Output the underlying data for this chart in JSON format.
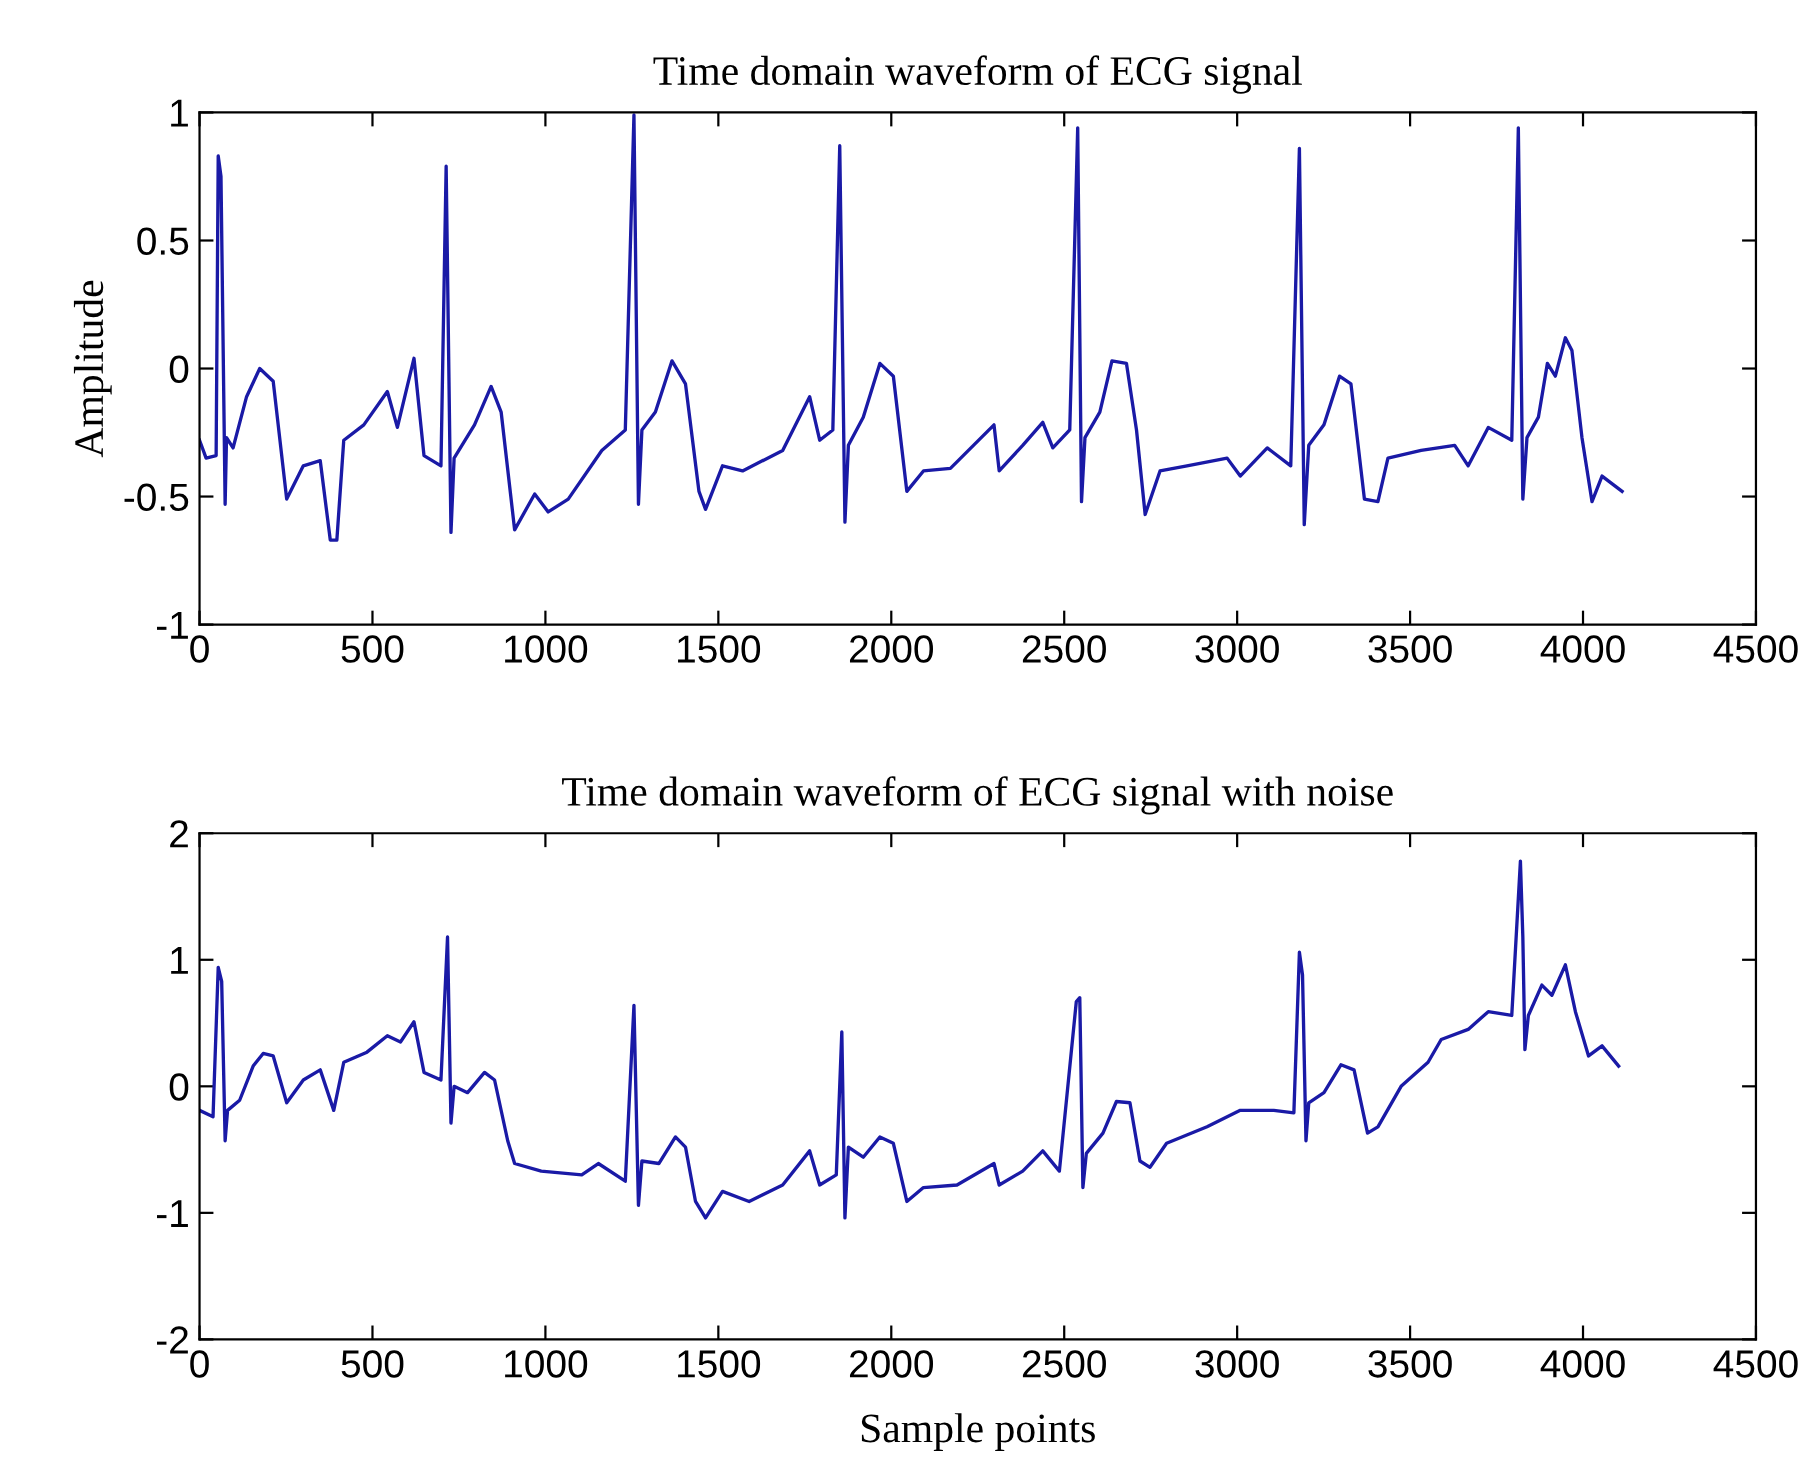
{
  "chart_data": [
    {
      "type": "line",
      "title": "Time domain waveform of ECG signal",
      "ylabel": "Amplitude",
      "xlim": [
        0,
        4500
      ],
      "ylim": [
        -1,
        1
      ],
      "xticks": [
        0,
        500,
        1000,
        1500,
        2000,
        2500,
        3000,
        3500,
        4000,
        4500
      ],
      "yticks": [
        -1,
        -0.5,
        0,
        0.5,
        1
      ],
      "series": [
        {
          "color": "#1a1aa6",
          "x": [
            0,
            19,
            48,
            54,
            62,
            74,
            78,
            97,
            136,
            174,
            213,
            252,
            300,
            349,
            378,
            397,
            417,
            475,
            543,
            572,
            620,
            649,
            698,
            713,
            727,
            736,
            795,
            843,
            872,
            911,
            969,
            1008,
            1066,
            1163,
            1231,
            1256,
            1269,
            1279,
            1318,
            1366,
            1405,
            1444,
            1463,
            1512,
            1570,
            1686,
            1764,
            1793,
            1831,
            1851,
            1866,
            1876,
            1919,
            1967,
            2006,
            2045,
            2093,
            2171,
            2297,
            2312,
            2380,
            2438,
            2467,
            2516,
            2539,
            2550,
            2560,
            2603,
            2638,
            2680,
            2709,
            2734,
            2777,
            2855,
            2971,
            3009,
            3087,
            3155,
            3180,
            3194,
            3207,
            3251,
            3296,
            3329,
            3368,
            3407,
            3436,
            3532,
            3629,
            3668,
            3726,
            3794,
            3813,
            3826,
            3838,
            3871,
            3897,
            3920,
            3949,
            3968,
            3997,
            4026,
            4055,
            4113
          ],
          "values": [
            -0.28,
            -0.35,
            -0.34,
            0.83,
            0.75,
            -0.53,
            -0.27,
            -0.31,
            -0.11,
            0.0,
            -0.05,
            -0.51,
            -0.38,
            -0.36,
            -0.67,
            -0.67,
            -0.28,
            -0.22,
            -0.09,
            -0.23,
            0.04,
            -0.34,
            -0.38,
            0.79,
            -0.64,
            -0.35,
            -0.22,
            -0.07,
            -0.17,
            -0.63,
            -0.49,
            -0.56,
            -0.51,
            -0.32,
            -0.24,
            0.99,
            -0.53,
            -0.24,
            -0.17,
            0.03,
            -0.06,
            -0.48,
            -0.55,
            -0.38,
            -0.4,
            -0.32,
            -0.11,
            -0.28,
            -0.24,
            0.87,
            -0.6,
            -0.3,
            -0.19,
            0.02,
            -0.03,
            -0.48,
            -0.4,
            -0.39,
            -0.22,
            -0.4,
            -0.3,
            -0.21,
            -0.31,
            -0.24,
            0.94,
            -0.52,
            -0.27,
            -0.17,
            0.03,
            0.02,
            -0.24,
            -0.57,
            -0.4,
            -0.38,
            -0.35,
            -0.42,
            -0.31,
            -0.38,
            0.86,
            -0.61,
            -0.3,
            -0.22,
            -0.03,
            -0.06,
            -0.51,
            -0.52,
            -0.35,
            -0.32,
            -0.3,
            -0.38,
            -0.23,
            -0.28,
            0.94,
            -0.51,
            -0.27,
            -0.19,
            0.02,
            -0.03,
            0.12,
            0.07,
            -0.27,
            -0.52,
            -0.42,
            -0.48
          ]
        }
      ]
    },
    {
      "type": "line",
      "title": "Time domain waveform of ECG signal with noise",
      "xlabel": "Sample points",
      "xlim": [
        0,
        4500
      ],
      "ylim": [
        -2,
        2
      ],
      "xticks": [
        0,
        500,
        1000,
        1500,
        2000,
        2500,
        3000,
        3500,
        4000,
        4500
      ],
      "yticks": [
        -2,
        -1,
        0,
        1,
        2
      ],
      "series": [
        {
          "color": "#1a1aa6",
          "x": [
            0,
            39,
            54,
            64,
            74,
            81,
            116,
            155,
            184,
            213,
            252,
            300,
            349,
            388,
            417,
            484,
            543,
            581,
            620,
            649,
            698,
            717,
            727,
            736,
            775,
            824,
            853,
            891,
            911,
            988,
            1105,
            1153,
            1231,
            1256,
            1269,
            1279,
            1328,
            1376,
            1405,
            1434,
            1463,
            1512,
            1589,
            1686,
            1764,
            1793,
            1841,
            1857,
            1866,
            1876,
            1919,
            1967,
            2006,
            2045,
            2093,
            2190,
            2297,
            2312,
            2380,
            2438,
            2486,
            2535,
            2545,
            2554,
            2564,
            2612,
            2651,
            2690,
            2719,
            2748,
            2796,
            2913,
            3009,
            3106,
            3164,
            3180,
            3189,
            3199,
            3207,
            3251,
            3300,
            3338,
            3377,
            3407,
            3474,
            3552,
            3590,
            3668,
            3726,
            3794,
            3819,
            3826,
            3832,
            3842,
            3881,
            3910,
            3949,
            3978,
            4016,
            4055,
            4103
          ],
          "values": [
            -0.19,
            -0.24,
            0.94,
            0.83,
            -0.43,
            -0.19,
            -0.11,
            0.16,
            0.26,
            0.24,
            -0.13,
            0.05,
            0.13,
            -0.19,
            0.19,
            0.27,
            0.4,
            0.35,
            0.51,
            0.11,
            0.05,
            1.18,
            -0.29,
            0.0,
            -0.05,
            0.11,
            0.05,
            -0.43,
            -0.61,
            -0.67,
            -0.7,
            -0.61,
            -0.75,
            0.64,
            -0.94,
            -0.59,
            -0.61,
            -0.4,
            -0.48,
            -0.91,
            -1.04,
            -0.83,
            -0.91,
            -0.78,
            -0.51,
            -0.78,
            -0.7,
            0.43,
            -1.04,
            -0.48,
            -0.56,
            -0.4,
            -0.45,
            -0.91,
            -0.8,
            -0.78,
            -0.61,
            -0.78,
            -0.67,
            -0.51,
            -0.67,
            0.67,
            0.7,
            -0.8,
            -0.53,
            -0.37,
            -0.12,
            -0.13,
            -0.59,
            -0.64,
            -0.45,
            -0.32,
            -0.19,
            -0.19,
            -0.21,
            1.06,
            0.88,
            -0.43,
            -0.13,
            -0.05,
            0.17,
            0.13,
            -0.37,
            -0.32,
            0.0,
            0.19,
            0.37,
            0.45,
            0.59,
            0.56,
            1.78,
            1.18,
            0.29,
            0.56,
            0.8,
            0.72,
            0.96,
            0.59,
            0.24,
            0.32,
            0.16
          ]
        }
      ]
    }
  ]
}
